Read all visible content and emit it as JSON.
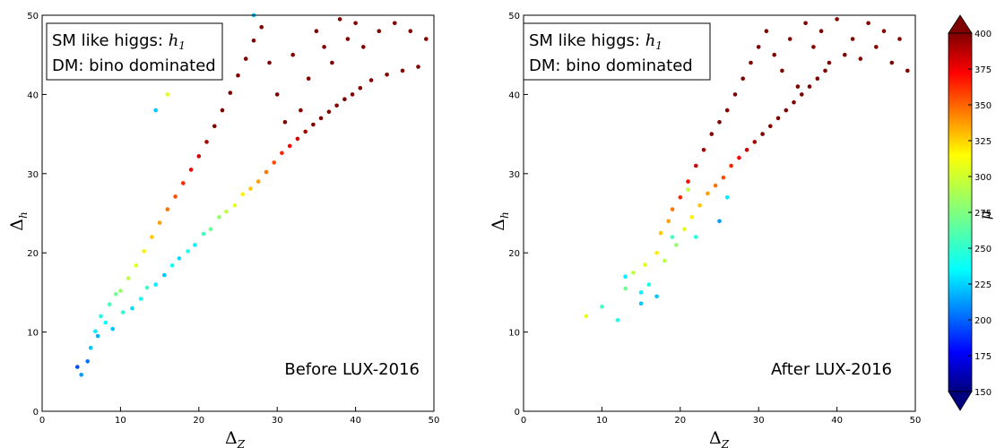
{
  "chart_data": [
    {
      "type": "scatter",
      "panel": "left",
      "xlabel": "Δ",
      "xlabel_sub": "Z",
      "ylabel": "Δ",
      "ylabel_sub": "h",
      "xlim": [
        0,
        50
      ],
      "ylim": [
        0,
        50
      ],
      "xticks": [
        "0",
        "10",
        "20",
        "30",
        "40",
        "50"
      ],
      "yticks": [
        "0",
        "10",
        "20",
        "30",
        "40",
        "50"
      ],
      "grid": false,
      "legend_box": {
        "placement": "top-left",
        "line1_text": "SM like higgs: ",
        "line1_math": "h",
        "line1_math_sub": "1",
        "line2_text": "DM: bino dominated"
      },
      "annotation": "Before LUX-2016",
      "color_variable": "μ",
      "color_range": [
        150,
        400
      ],
      "series": [
        {
          "points": [
            [
              4.5,
              5.6,
              200
            ],
            [
              5.0,
              4.6,
              220
            ],
            [
              5.8,
              6.3,
              210
            ],
            [
              6.2,
              8.0,
              230
            ],
            [
              6.8,
              10.1,
              240
            ],
            [
              7.1,
              9.5,
              225
            ],
            [
              7.5,
              12.0,
              250
            ],
            [
              8.1,
              11.2,
              245
            ],
            [
              8.6,
              13.5,
              260
            ],
            [
              9.0,
              10.4,
              230
            ],
            [
              9.4,
              14.8,
              270
            ],
            [
              10.0,
              15.2,
              280
            ],
            [
              10.3,
              12.5,
              255
            ],
            [
              11.0,
              16.8,
              290
            ],
            [
              11.5,
              13.0,
              235
            ],
            [
              12.0,
              18.4,
              300
            ],
            [
              12.6,
              14.2,
              245
            ],
            [
              13.0,
              20.2,
              310
            ],
            [
              13.4,
              15.6,
              260
            ],
            [
              14.0,
              22.0,
              320
            ],
            [
              14.5,
              16.0,
              240
            ],
            [
              15.0,
              23.8,
              330
            ],
            [
              15.6,
              17.2,
              230
            ],
            [
              16.0,
              25.5,
              340
            ],
            [
              16.6,
              18.4,
              245
            ],
            [
              17.0,
              27.1,
              350
            ],
            [
              17.5,
              19.3,
              235
            ],
            [
              18.0,
              28.8,
              360
            ],
            [
              18.6,
              20.2,
              250
            ],
            [
              19.0,
              30.5,
              370
            ],
            [
              19.5,
              21.0,
              240
            ],
            [
              20.0,
              32.2,
              380
            ],
            [
              20.6,
              22.4,
              260
            ],
            [
              21.0,
              34.0,
              390
            ],
            [
              21.5,
              23.0,
              270
            ],
            [
              22.0,
              36.0,
              400
            ],
            [
              22.6,
              24.5,
              280
            ],
            [
              23.0,
              38.0,
              400
            ],
            [
              23.5,
              25.2,
              290
            ],
            [
              24.0,
              40.2,
              400
            ],
            [
              24.6,
              26.0,
              300
            ],
            [
              25.0,
              42.4,
              400
            ],
            [
              25.6,
              27.4,
              310
            ],
            [
              26.0,
              44.5,
              400
            ],
            [
              26.6,
              28.1,
              320
            ],
            [
              27.0,
              46.8,
              400
            ],
            [
              27.6,
              29.0,
              330
            ],
            [
              28.0,
              48.5,
              400
            ],
            [
              28.6,
              30.2,
              340
            ],
            [
              29.0,
              44.0,
              400
            ],
            [
              29.6,
              31.4,
              350
            ],
            [
              30.0,
              40.0,
              400
            ],
            [
              30.6,
              32.6,
              360
            ],
            [
              31.0,
              36.5,
              400
            ],
            [
              31.6,
              33.5,
              370
            ],
            [
              32.0,
              45.0,
              400
            ],
            [
              32.6,
              34.4,
              380
            ],
            [
              33.0,
              38.0,
              400
            ],
            [
              33.6,
              35.3,
              390
            ],
            [
              34.0,
              42.0,
              400
            ],
            [
              34.6,
              36.2,
              400
            ],
            [
              35.0,
              48.0,
              400
            ],
            [
              35.6,
              37.0,
              400
            ],
            [
              36.0,
              46.0,
              400
            ],
            [
              36.6,
              37.8,
              400
            ],
            [
              37.0,
              44.0,
              400
            ],
            [
              37.6,
              38.6,
              400
            ],
            [
              38.0,
              49.5,
              400
            ],
            [
              38.6,
              39.4,
              400
            ],
            [
              39.0,
              47.0,
              400
            ],
            [
              39.6,
              40.0,
              400
            ],
            [
              40.0,
              49.0,
              400
            ],
            [
              40.6,
              40.8,
              400
            ],
            [
              41.0,
              46.0,
              400
            ],
            [
              42.0,
              41.8,
              400
            ],
            [
              43.0,
              48.0,
              400
            ],
            [
              44.0,
              42.5,
              400
            ],
            [
              45.0,
              49.0,
              400
            ],
            [
              46.0,
              43.0,
              400
            ],
            [
              47.0,
              48.0,
              400
            ],
            [
              48.0,
              43.5,
              400
            ],
            [
              49.0,
              47.0,
              400
            ],
            [
              14.5,
              38.0,
              230
            ],
            [
              16.0,
              40.0,
              300
            ],
            [
              21.0,
              47.0,
              260
            ],
            [
              27.0,
              50.0,
              230
            ]
          ]
        }
      ]
    },
    {
      "type": "scatter",
      "panel": "right",
      "xlabel": "Δ",
      "xlabel_sub": "Z",
      "ylabel": "Δ",
      "ylabel_sub": "h",
      "xlim": [
        0,
        50
      ],
      "ylim": [
        0,
        50
      ],
      "xticks": [
        "0",
        "10",
        "20",
        "30",
        "40",
        "50"
      ],
      "yticks": [
        "0",
        "10",
        "20",
        "30",
        "40",
        "50"
      ],
      "grid": false,
      "legend_box": {
        "placement": "top-left",
        "line1_text": "SM like higgs: ",
        "line1_math": "h",
        "line1_math_sub": "1",
        "line2_text": "DM: bino dominated"
      },
      "annotation": "After LUX-2016",
      "color_variable": "μ",
      "color_range": [
        150,
        400
      ],
      "series": [
        {
          "points": [
            [
              8.0,
              12.0,
              300
            ],
            [
              10.0,
              13.2,
              260
            ],
            [
              12.0,
              11.5,
              250
            ],
            [
              13.0,
              15.5,
              270
            ],
            [
              14.0,
              17.5,
              290
            ],
            [
              15.0,
              13.6,
              230
            ],
            [
              15.5,
              18.5,
              300
            ],
            [
              16.0,
              16.0,
              250
            ],
            [
              17.0,
              20.0,
              310
            ],
            [
              17.5,
              22.5,
              320
            ],
            [
              18.0,
              19.0,
              290
            ],
            [
              18.5,
              24.0,
              330
            ],
            [
              19.0,
              25.5,
              340
            ],
            [
              19.5,
              21.0,
              280
            ],
            [
              20.0,
              27.0,
              360
            ],
            [
              20.5,
              23.0,
              300
            ],
            [
              21.0,
              29.0,
              370
            ],
            [
              21.5,
              24.5,
              310
            ],
            [
              22.0,
              31.0,
              380
            ],
            [
              22.5,
              26.0,
              320
            ],
            [
              23.0,
              33.0,
              390
            ],
            [
              23.5,
              27.5,
              330
            ],
            [
              24.0,
              35.0,
              400
            ],
            [
              24.5,
              28.5,
              340
            ],
            [
              25.0,
              36.5,
              400
            ],
            [
              25.5,
              29.5,
              350
            ],
            [
              26.0,
              38.0,
              400
            ],
            [
              26.5,
              31.0,
              360
            ],
            [
              27.0,
              40.0,
              400
            ],
            [
              27.5,
              32.0,
              370
            ],
            [
              28.0,
              42.0,
              400
            ],
            [
              28.5,
              33.0,
              380
            ],
            [
              29.0,
              44.0,
              400
            ],
            [
              29.5,
              34.0,
              390
            ],
            [
              30.0,
              46.0,
              400
            ],
            [
              30.5,
              35.0,
              400
            ],
            [
              31.0,
              48.0,
              400
            ],
            [
              31.5,
              36.0,
              400
            ],
            [
              32.0,
              45.0,
              400
            ],
            [
              32.5,
              37.0,
              400
            ],
            [
              33.0,
              43.0,
              400
            ],
            [
              33.5,
              38.0,
              400
            ],
            [
              34.0,
              47.0,
              400
            ],
            [
              34.5,
              39.0,
              400
            ],
            [
              35.0,
              41.0,
              400
            ],
            [
              35.5,
              40.0,
              400
            ],
            [
              36.0,
              49.0,
              400
            ],
            [
              36.5,
              41.0,
              400
            ],
            [
              37.0,
              46.0,
              400
            ],
            [
              37.5,
              42.0,
              400
            ],
            [
              38.0,
              48.0,
              400
            ],
            [
              38.5,
              43.0,
              400
            ],
            [
              39.0,
              44.0,
              400
            ],
            [
              40.0,
              49.5,
              400
            ],
            [
              41.0,
              45.0,
              400
            ],
            [
              42.0,
              47.0,
              400
            ],
            [
              43.0,
              44.5,
              400
            ],
            [
              44.0,
              49.0,
              400
            ],
            [
              45.0,
              46.0,
              400
            ],
            [
              46.0,
              48.0,
              400
            ],
            [
              47.0,
              44.0,
              400
            ],
            [
              48.0,
              47.0,
              400
            ],
            [
              49.0,
              43.0,
              400
            ],
            [
              13.0,
              17.0,
              240
            ],
            [
              15.0,
              15.0,
              240
            ],
            [
              17.0,
              14.5,
              230
            ],
            [
              19.0,
              22.0,
              260
            ],
            [
              21.0,
              28.0,
              290
            ],
            [
              22.0,
              22.0,
              250
            ],
            [
              25.0,
              24.0,
              220
            ],
            [
              26.0,
              27.0,
              240
            ]
          ]
        }
      ]
    }
  ],
  "colorbar": {
    "label": "μ",
    "min": 150,
    "max": 400,
    "ticks": [
      "150",
      "175",
      "200",
      "225",
      "250",
      "275",
      "300",
      "325",
      "350",
      "375",
      "400"
    ],
    "colormap": "jet",
    "extend": "both"
  }
}
